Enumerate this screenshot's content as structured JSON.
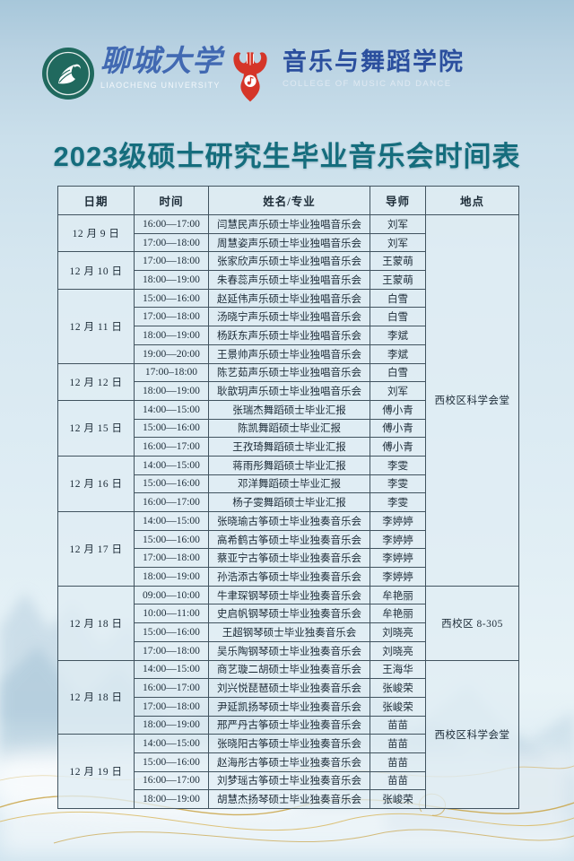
{
  "header": {
    "university": {
      "name_cn": "聊城大学",
      "name_en": "LIAOCHENG UNIVERSITY"
    },
    "college": {
      "name_cn": "音乐与舞蹈学院",
      "name_en": "COLLEGE OF MUSIC AND DANCE"
    }
  },
  "title": "2023级硕士研究生毕业音乐会时间表",
  "table": {
    "columns": [
      "日期",
      "时间",
      "姓名/专业",
      "导师",
      "地点"
    ],
    "date_groups": [
      {
        "date": "12 月 9 日",
        "rows": [
          {
            "time": "16:00—17:00",
            "name": "闫慧民声乐硕士毕业独唱音乐会",
            "mentor": "刘军"
          },
          {
            "time": "17:00—18:00",
            "name": "周慧姿声乐硕士毕业独唱音乐会",
            "mentor": "刘军"
          }
        ]
      },
      {
        "date": "12 月 10 日",
        "rows": [
          {
            "time": "17:00—18:00",
            "name": "张家欣声乐硕士毕业独唱音乐会",
            "mentor": "王蒙萌"
          },
          {
            "time": "18:00—19:00",
            "name": "朱春蕊声乐硕士毕业独唱音乐会",
            "mentor": "王蒙萌"
          }
        ]
      },
      {
        "date": "12 月 11 日",
        "rows": [
          {
            "time": "15:00—16:00",
            "name": "赵延伟声乐硕士毕业独唱音乐会",
            "mentor": "白雪"
          },
          {
            "time": "17:00—18:00",
            "name": "汤晓宁声乐硕士毕业独唱音乐会",
            "mentor": "白雪"
          },
          {
            "time": "18:00—19:00",
            "name": "杨跃东声乐硕士毕业独唱音乐会",
            "mentor": "李斌"
          },
          {
            "time": "19:00—20:00",
            "name": "王景帅声乐硕士毕业独唱音乐会",
            "mentor": "李斌"
          }
        ]
      },
      {
        "date": "12 月 12 日",
        "rows": [
          {
            "time": "17:00–18:00",
            "name": "陈艺茹声乐硕士毕业独唱音乐会",
            "mentor": "白雪"
          },
          {
            "time": "18:00—19:00",
            "name": "耿歆玥声乐硕士毕业独唱音乐会",
            "mentor": "刘军"
          }
        ]
      },
      {
        "date": "12 月 15 日",
        "rows": [
          {
            "time": "14:00—15:00",
            "name": "张瑞杰舞蹈硕士毕业汇报",
            "mentor": "傅小青"
          },
          {
            "time": "15:00—16:00",
            "name": "陈凯舞蹈硕士毕业汇报",
            "mentor": "傅小青"
          },
          {
            "time": "16:00—17:00",
            "name": "王孜琦舞蹈硕士毕业汇报",
            "mentor": "傅小青"
          }
        ]
      },
      {
        "date": "12 月 16 日",
        "rows": [
          {
            "time": "14:00—15:00",
            "name": "蒋雨彤舞蹈硕士毕业汇报",
            "mentor": "李雯"
          },
          {
            "time": "15:00—16:00",
            "name": "邓洋舞蹈硕士毕业汇报",
            "mentor": "李雯"
          },
          {
            "time": "16:00—17:00",
            "name": "杨子雯舞蹈硕士毕业汇报",
            "mentor": "李雯"
          }
        ]
      },
      {
        "date": "12 月 17 日",
        "rows": [
          {
            "time": "14:00—15:00",
            "name": "张晓瑜古筝硕士毕业独奏音乐会",
            "mentor": "李婷婷"
          },
          {
            "time": "15:00—16:00",
            "name": "高希鹤古筝硕士毕业独奏音乐会",
            "mentor": "李婷婷"
          },
          {
            "time": "17:00—18:00",
            "name": "蔡亚宁古筝硕士毕业独奏音乐会",
            "mentor": "李婷婷"
          },
          {
            "time": "18:00—19:00",
            "name": "孙浩添古筝硕士毕业独奏音乐会",
            "mentor": "李婷婷"
          }
        ]
      },
      {
        "date": "12 月 18 日",
        "rows": [
          {
            "time": "09:00—10:00",
            "name": "牛聿琛钢琴硕士毕业独奏音乐会",
            "mentor": "牟艳丽"
          },
          {
            "time": "10:00—11:00",
            "name": "史启帆钢琴硕士毕业独奏音乐会",
            "mentor": "牟艳丽"
          },
          {
            "time": "15:00—16:00",
            "name": "王超钢琴硕士毕业独奏音乐会",
            "mentor": "刘晓亮"
          },
          {
            "time": "17:00—18:00",
            "name": "吴乐陶钢琴硕士毕业独奏音乐会",
            "mentor": "刘晓亮"
          }
        ]
      },
      {
        "date": "12 月 18 日",
        "rows": [
          {
            "time": "14:00—15:00",
            "name": "商艺璇二胡硕士毕业独奏音乐会",
            "mentor": "王海华"
          },
          {
            "time": "16:00—17:00",
            "name": "刘兴悦琵琶硕士毕业独奏音乐会",
            "mentor": "张峻荣"
          },
          {
            "time": "17:00—18:00",
            "name": "尹延凯扬琴硕士毕业独奏音乐会",
            "mentor": "张峻荣"
          },
          {
            "time": "18:00—19:00",
            "name": "邢严丹古筝硕士毕业独奏音乐会",
            "mentor": "苗苗"
          }
        ]
      },
      {
        "date": "12 月 19 日",
        "rows": [
          {
            "time": "14:00—15:00",
            "name": "张晓阳古筝硕士毕业独奏音乐会",
            "mentor": "苗苗"
          },
          {
            "time": "15:00—16:00",
            "name": "赵海彤古筝硕士毕业独奏音乐会",
            "mentor": "苗苗"
          },
          {
            "time": "16:00—17:00",
            "name": "刘梦瑶古筝硕士毕业独奏音乐会",
            "mentor": "苗苗"
          },
          {
            "time": "18:00—19:00",
            "name": "胡慧杰扬琴硕士毕业独奏音乐会",
            "mentor": "张峻荣"
          }
        ]
      }
    ],
    "locations": [
      {
        "row_start": 1,
        "row_span": 20,
        "text": "西校区科学会堂"
      },
      {
        "row_start": 21,
        "row_span": 4,
        "text": "西校区 8-305"
      },
      {
        "row_start": 25,
        "row_span": 8,
        "text": "西校区科学会堂"
      }
    ]
  },
  "colors": {
    "accent_teal": "#156d7d",
    "logo_green": "#20695e",
    "logo_blue": "#4169b2",
    "college_blue": "#2b4f9e",
    "logo_red": "#d53528",
    "gold": "#c9a344",
    "table_border": "#41535f"
  }
}
